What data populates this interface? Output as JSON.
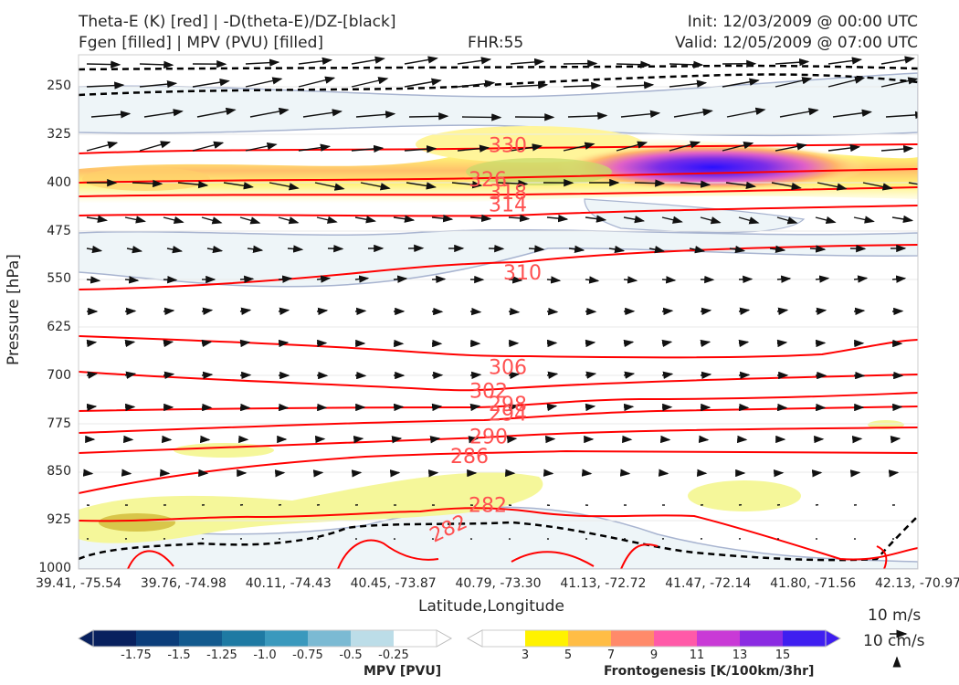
{
  "header": {
    "line1_left": "Theta-E (K) [red] | -D(theta-E)/DZ-[black]",
    "line2_left": "Fgen [filled] | MPV (PVU) [filled]",
    "line2_center": "FHR:55",
    "line1_right": "Init: 12/03/2009 @ 00:00 UTC",
    "line2_right": "Valid: 12/05/2009 @ 07:00 UTC"
  },
  "chart_data": {
    "type": "cross-section",
    "xlabel": "Latitude,Longitude",
    "ylabel": "Pressure [hPa]",
    "x_ticks": [
      "39.41, -75.54",
      "39.76, -74.98",
      "40.11, -74.43",
      "40.45, -73.87",
      "40.79, -73.30",
      "41.13, -72.72",
      "41.47, -72.14",
      "41.80, -71.56",
      "42.13, -70.97"
    ],
    "y_ticks": [
      "250",
      "325",
      "400",
      "475",
      "550",
      "625",
      "700",
      "775",
      "850",
      "925",
      "1000"
    ],
    "ylim": [
      1000,
      200
    ],
    "theta_e_contours": [
      {
        "label": "330",
        "pressure": 340
      },
      {
        "label": "326",
        "pressure": 393
      },
      {
        "label": "318",
        "pressure": 413
      },
      {
        "label": "314",
        "pressure": 432
      },
      {
        "label": "310",
        "pressure": 538
      },
      {
        "label": "306",
        "pressure": 685
      },
      {
        "label": "302",
        "pressure": 722
      },
      {
        "label": "298",
        "pressure": 743
      },
      {
        "label": "294",
        "pressure": 758
      },
      {
        "label": "290",
        "pressure": 793
      },
      {
        "label": "286",
        "pressure": 824
      },
      {
        "label": "282",
        "pressure": 900
      },
      {
        "label": "282",
        "pressure": 935
      }
    ],
    "mpv_colorbar": {
      "label": "MPV [PVU]",
      "ticks": [
        "-1.75",
        "-1.5",
        "-1.25",
        "-1.0",
        "-0.75",
        "-0.5",
        "-0.25"
      ],
      "colors": [
        "#08205e",
        "#0b3d7a",
        "#135a8e",
        "#1e7aa3",
        "#3a99bd",
        "#7bbad3",
        "#bcdde8",
        "#ffffff"
      ]
    },
    "fgen_colorbar": {
      "label": "Frontogenesis [K/100km/3hr]",
      "ticks": [
        "3",
        "5",
        "7",
        "9",
        "11",
        "13",
        "15"
      ],
      "colors": [
        "#ffffff",
        "#fff200",
        "#ffbd45",
        "#ff8a6a",
        "#ff5aa8",
        "#c93ad6",
        "#8a2be2",
        "#3f1ef0"
      ]
    },
    "reference_vectors": [
      {
        "label": "10 m/s"
      },
      {
        "label": "10 cm/s"
      }
    ]
  }
}
